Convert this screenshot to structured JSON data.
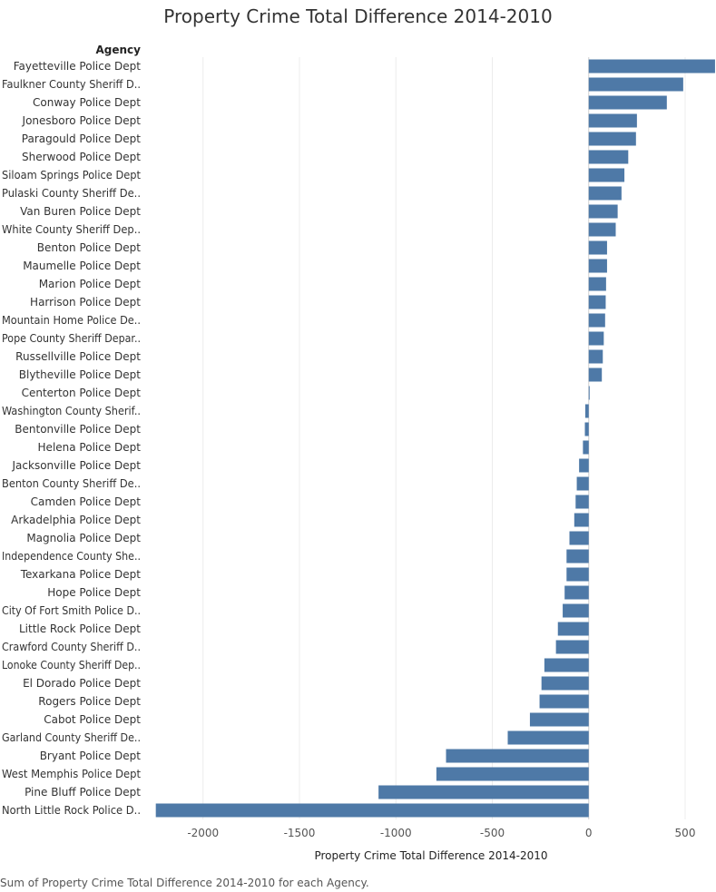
{
  "chart_data": {
    "type": "bar",
    "orientation": "horizontal",
    "title": "Property Crime Total Difference 2014-2010",
    "row_header": "Agency",
    "xlabel": "Property Crime Total Difference 2014-2010",
    "xlim": [
      -2300,
      660
    ],
    "x_ticks": [
      -2000,
      -1500,
      -1000,
      -500,
      0,
      500
    ],
    "grid": true,
    "bar_color": "#4e79a7",
    "footnote": "Sum of Property Crime Total Difference 2014-2010 for each Agency.",
    "categories": [
      "Fayetteville Police Dept",
      "Faulkner County Sheriff D..",
      "Conway Police Dept",
      "Jonesboro Police Dept",
      "Paragould Police Dept",
      "Sherwood Police Dept",
      "Siloam Springs Police Dept",
      "Pulaski County Sheriff De..",
      "Van Buren Police Dept",
      "White County Sheriff Dep..",
      "Benton Police Dept",
      "Maumelle Police Dept",
      "Marion Police Dept",
      "Harrison Police Dept",
      "Mountain Home Police De..",
      "Pope County Sheriff Depar..",
      "Russellville Police Dept",
      "Blytheville Police Dept",
      "Centerton Police Dept",
      "Washington County Sherif..",
      "Bentonville Police Dept",
      "Helena Police Dept",
      "Jacksonville Police Dept",
      "Benton County Sheriff De..",
      "Camden Police Dept",
      "Arkadelphia Police Dept",
      "Magnolia Police Dept",
      "Independence County She..",
      "Texarkana Police Dept",
      "Hope Police Dept",
      "City Of Fort Smith Police D..",
      "Little Rock Police Dept",
      "Crawford County Sheriff D..",
      "Lonoke County Sheriff Dep..",
      "El Dorado Police Dept",
      "Rogers Police Dept",
      "Cabot Police Dept",
      "Garland County Sheriff De..",
      "Bryant Police Dept",
      "West Memphis Police Dept",
      "Pine Bluff Police Dept",
      "North Little Rock Police D.."
    ],
    "values": [
      655,
      490,
      405,
      250,
      245,
      205,
      185,
      170,
      150,
      140,
      95,
      95,
      90,
      88,
      85,
      78,
      73,
      68,
      3,
      -18,
      -20,
      -30,
      -50,
      -62,
      -68,
      -75,
      -100,
      -115,
      -115,
      -125,
      -135,
      -160,
      -170,
      -230,
      -245,
      -255,
      -305,
      -420,
      -740,
      -790,
      -1090,
      -2245
    ]
  }
}
